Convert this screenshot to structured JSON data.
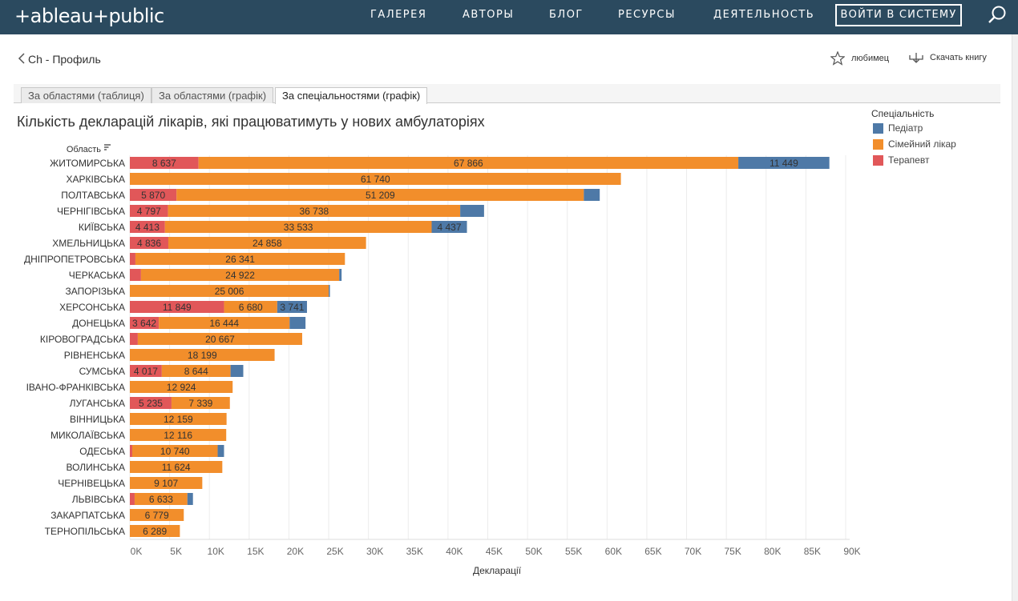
{
  "header": {
    "logo": "+ableau+public",
    "nav": [
      "ГАЛЕРЕЯ",
      "АВТОРЫ",
      "БЛОГ",
      "РЕСУРСЫ",
      "ДЕЯТЕЛЬНОСТЬ"
    ],
    "login": "ВОЙТИ В СИСТЕМУ",
    "search_icon": "search-icon",
    "bg_color": "#2b4a5f"
  },
  "subbar": {
    "back_label": "Ch - Профиль",
    "favorite_label": "любимец",
    "download_label": "Скачать книгу"
  },
  "tabs": [
    {
      "label": "За областями (таблиця)",
      "active": false
    },
    {
      "label": "За областями (графік)",
      "active": false
    },
    {
      "label": "За спеціальностями (графік)",
      "active": true
    }
  ],
  "legend": {
    "title": "Спеціальність",
    "items": [
      {
        "label": "Педіатр",
        "color": "#4e79a7"
      },
      {
        "label": "Сімейний лікар",
        "color": "#f28e2b"
      },
      {
        "label": "Терапевт",
        "color": "#e15759"
      }
    ]
  },
  "chart_data": {
    "type": "bar",
    "orientation": "horizontal",
    "stacked": true,
    "title": "Кількість декларацій лікарів, які працюватимуть у нових амбулаторіях",
    "ylabel": "Область",
    "xlabel": "Декларації",
    "xlim": [
      0,
      90000
    ],
    "xticks": [
      "0K",
      "5K",
      "10K",
      "15K",
      "20K",
      "25K",
      "30K",
      "35K",
      "40K",
      "45K",
      "50K",
      "55K",
      "60K",
      "65K",
      "70K",
      "75K",
      "80K",
      "85K",
      "90K"
    ],
    "grid": true,
    "legend_position": "right",
    "categories": [
      "ЖИТОМИРСЬКА",
      "ХАРКІВСЬКА",
      "ПОЛТАВСЬКА",
      "ЧЕРНІГІВСЬКА",
      "КИЇВСЬКА",
      "ХМЕЛЬНИЦЬКА",
      "ДНІПРОПЕТРОВСЬКА",
      "ЧЕРКАСЬКА",
      "ЗАПОРІЗЬКА",
      "ХЕРСОНСЬКА",
      "ДОНЕЦЬКА",
      "КІРОВОГРАДСЬКА",
      "РІВНЕНСЬКА",
      "СУМСЬКА",
      "ІВАНО-ФРАНКІВСЬКА",
      "ЛУГАНСЬКА",
      "ВІННИЦЬКА",
      "МИКОЛАЇВСЬКА",
      "ОДЕСЬКА",
      "ВОЛИНСЬКА",
      "ЧЕРНІВЕЦЬКА",
      "ЛЬВІВСЬКА",
      "ЗАКАРПАТСЬКА",
      "ТЕРНОПІЛЬСЬКА"
    ],
    "series": [
      {
        "name": "Терапевт",
        "color": "#e15759",
        "values": [
          8637,
          0,
          5870,
          4797,
          4413,
          4836,
          700,
          1400,
          0,
          11849,
          3642,
          1000,
          0,
          4017,
          0,
          5235,
          0,
          0,
          300,
          0,
          0,
          600,
          0,
          0
        ],
        "labels": [
          "8 637",
          "",
          "5 870",
          "4 797",
          "4 413",
          "4 836",
          "",
          "",
          "",
          "11 849",
          "3 642",
          "",
          "",
          "4 017",
          "",
          "5 235",
          "",
          "",
          "",
          "",
          "",
          "",
          "",
          ""
        ]
      },
      {
        "name": "Сімейний лікар",
        "color": "#f28e2b",
        "values": [
          67866,
          61740,
          51209,
          36738,
          33533,
          24858,
          26341,
          24922,
          25006,
          6680,
          16444,
          20667,
          18199,
          8644,
          12924,
          7339,
          12159,
          12116,
          10740,
          11624,
          9107,
          6633,
          6779,
          6289
        ],
        "labels": [
          "67 866",
          "61 740",
          "51 209",
          "36 738",
          "33 533",
          "24 858",
          "26 341",
          "24 922",
          "25 006",
          "6 680",
          "16 444",
          "20 667",
          "18 199",
          "8 644",
          "12 924",
          "7 339",
          "12 159",
          "12 116",
          "10 740",
          "11 624",
          "9 107",
          "6 633",
          "6 779",
          "6 289"
        ]
      },
      {
        "name": "Педіатр",
        "color": "#4e79a7",
        "values": [
          11449,
          0,
          2000,
          3000,
          4437,
          0,
          0,
          300,
          150,
          3741,
          2000,
          0,
          0,
          1600,
          0,
          0,
          0,
          0,
          800,
          0,
          0,
          700,
          0,
          0
        ],
        "labels": [
          "11 449",
          "",
          "",
          "",
          "4 437",
          "",
          "",
          "",
          "",
          "3 741",
          "",
          "",
          "",
          "",
          "",
          "",
          "",
          "",
          "",
          "",
          "",
          "",
          "",
          ""
        ]
      }
    ]
  }
}
